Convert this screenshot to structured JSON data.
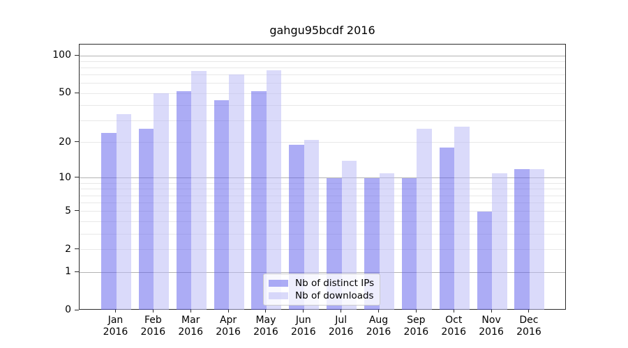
{
  "chart_data": {
    "type": "bar",
    "title": "gahgu95bcdf 2016",
    "x_months": [
      "Jan",
      "Feb",
      "Mar",
      "Apr",
      "May",
      "Jun",
      "Jul",
      "Aug",
      "Sep",
      "Oct",
      "Nov",
      "Dec"
    ],
    "x_year": "2016",
    "categories": [
      "Jan 2016",
      "Feb 2016",
      "Mar 2016",
      "Apr 2016",
      "May 2016",
      "Jun 2016",
      "Jul 2016",
      "Aug 2016",
      "Sep 2016",
      "Oct 2016",
      "Nov 2016",
      "Dec 2016"
    ],
    "series": [
      {
        "name": "Nb of distinct IPs",
        "color": "#a6a6f2",
        "fill_rgba": "rgba(90,90,235,0.5)",
        "values": [
          24,
          26,
          52,
          44,
          52,
          19,
          10,
          10,
          10,
          18,
          5,
          12
        ]
      },
      {
        "name": "Nb of downloads",
        "color": "#dcdcf8",
        "fill_rgba": "rgba(185,185,245,0.52)",
        "values": [
          34,
          50,
          76,
          71,
          77,
          21,
          14,
          11,
          26,
          27,
          11,
          12
        ]
      }
    ],
    "yscale": "log1p",
    "ylim": [
      0,
      120
    ],
    "yticks": [
      0,
      1,
      2,
      5,
      10,
      20,
      50,
      100
    ],
    "grid": {
      "major_values": [
        1,
        10,
        100
      ],
      "minor_values": [
        2,
        3,
        4,
        5,
        6,
        7,
        8,
        9,
        20,
        30,
        40,
        50,
        60,
        70,
        80,
        90
      ],
      "major_color": "#b3b3b3",
      "minor_color": "#e8e8e8"
    },
    "legend_position": "lower center",
    "legend_items": [
      "Nb of distinct IPs",
      "Nb of downloads"
    ]
  }
}
